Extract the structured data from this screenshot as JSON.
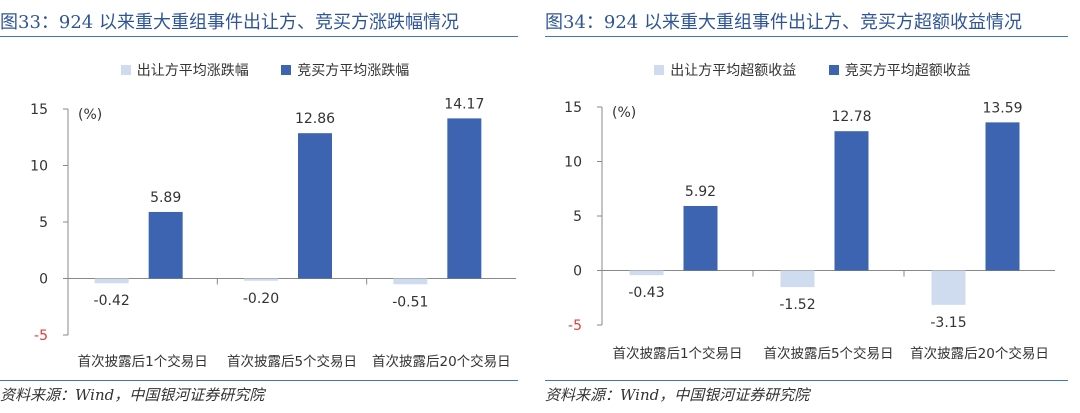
{
  "colors": {
    "seller": "#cfdcf0",
    "buyer": "#3d64b1",
    "title": "#2f5597",
    "neg_tick": "#e33a3a"
  },
  "source_text": "资料来源：Wind，中国银河证券研究院",
  "left": {
    "title": "图33：924 以来重大重组事件出让方、竞买方涨跌幅情况",
    "legend": [
      "出让方平均涨跌幅",
      "竞买方平均涨跌幅"
    ],
    "unit": "(%)"
  },
  "right": {
    "title": "图34：924 以来重大重组事件出让方、竞买方超额收益情况",
    "legend": [
      "出让方平均超额收益",
      "竞买方平均超额收益"
    ],
    "unit": "(%)"
  },
  "chart_data": [
    {
      "type": "bar",
      "title": "图33：924 以来重大重组事件出让方、竞买方涨跌幅情况",
      "categories": [
        "首次披露后1个交易日",
        "首次披露后5个交易日",
        "首次披露后20个交易日"
      ],
      "series": [
        {
          "name": "出让方平均涨跌幅",
          "values": [
            -0.42,
            -0.2,
            -0.51
          ]
        },
        {
          "name": "竞买方平均涨跌幅",
          "values": [
            5.89,
            12.86,
            14.17
          ]
        }
      ],
      "ylabel": "(%)",
      "ylim": [
        -5,
        15
      ],
      "yticks": [
        -5,
        0,
        5,
        10,
        15
      ],
      "legend": "top-center",
      "grid": false
    },
    {
      "type": "bar",
      "title": "图34：924 以来重大重组事件出让方、竞买方超额收益情况",
      "categories": [
        "首次披露后1个交易日",
        "首次披露后5个交易日",
        "首次披露后20个交易日"
      ],
      "series": [
        {
          "name": "出让方平均超额收益",
          "values": [
            -0.43,
            -1.52,
            -3.15
          ]
        },
        {
          "name": "竞买方平均超额收益",
          "values": [
            5.92,
            12.78,
            13.59
          ]
        }
      ],
      "ylabel": "(%)",
      "ylim": [
        -5,
        15
      ],
      "yticks": [
        -5,
        0,
        5,
        10,
        15
      ],
      "legend": "top-center",
      "grid": false
    }
  ]
}
